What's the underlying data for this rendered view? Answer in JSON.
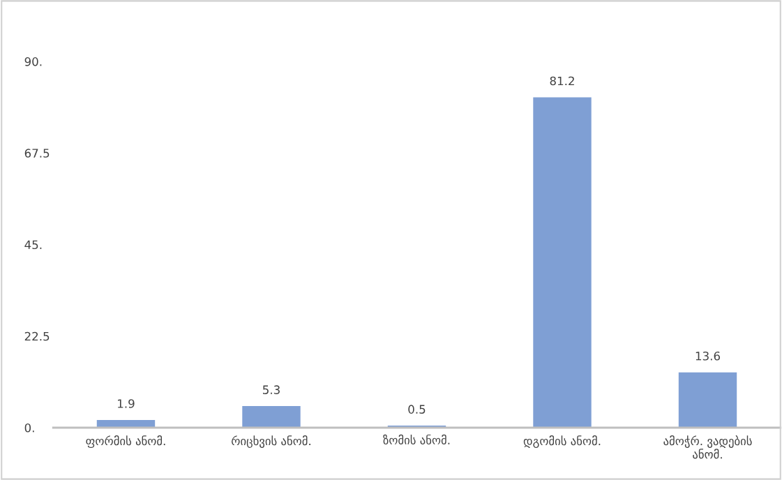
{
  "chart_data": {
    "type": "bar",
    "categories": [
      "ფორმის ანომ.",
      "რიცხვის ანომ.",
      "ზომის ანომ.",
      "დგომის ანომ.",
      "ამოჭრ. ვადების\nანომ."
    ],
    "values": [
      1.9,
      5.3,
      0.5,
      81.2,
      13.6
    ],
    "color": "#7f9fd4",
    "data_labels": true,
    "ylim": [
      0,
      90
    ],
    "yticks": [
      {
        "value": 0,
        "label": "0."
      },
      22.5,
      {
        "value": 45,
        "label": "45."
      },
      67.5,
      {
        "value": 90,
        "label": "90."
      }
    ],
    "grid": false,
    "legend": false
  }
}
